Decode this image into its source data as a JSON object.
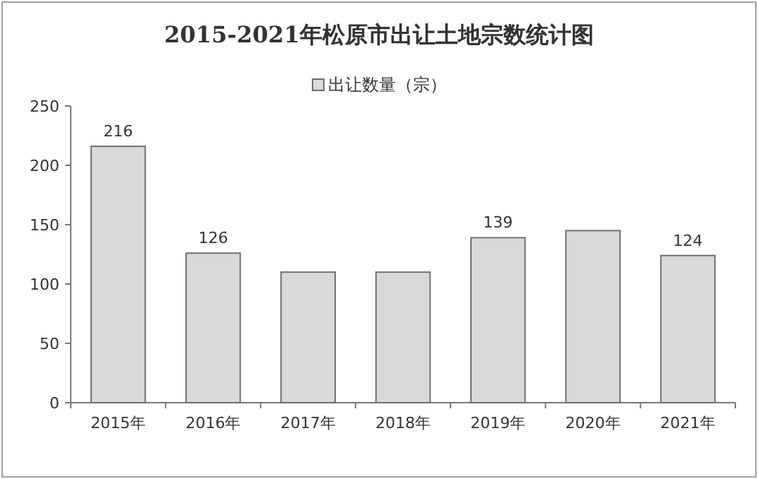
{
  "chart_data": {
    "type": "bar",
    "title": "2015-2021年松原市出让土地宗数统计图",
    "categories": [
      "2015年",
      "2016年",
      "2017年",
      "2018年",
      "2019年",
      "2020年",
      "2021年"
    ],
    "series": [
      {
        "name": "出让数量（宗）",
        "color": "#d9d9d9",
        "values": [
          216,
          126,
          110,
          110,
          139,
          145,
          124
        ],
        "value_labels": [
          "216",
          "126",
          null,
          null,
          "139",
          null,
          "124"
        ]
      }
    ],
    "ylim": [
      0,
      250
    ],
    "yticks": [
      0,
      50,
      100,
      150,
      200,
      250
    ],
    "legend": "top",
    "grid": false
  }
}
